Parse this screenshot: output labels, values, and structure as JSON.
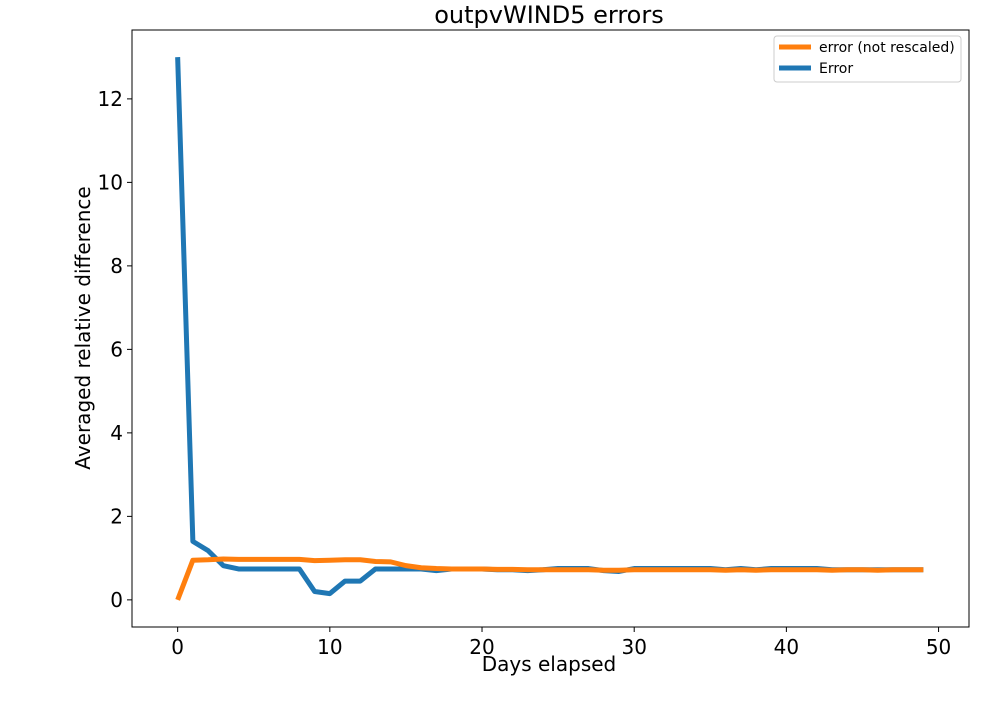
{
  "chart_data": {
    "type": "line",
    "title": "outpvWIND5 errors",
    "xlabel": "Days elapsed",
    "ylabel": "Averaged relative difference",
    "xlim": [
      -3,
      52
    ],
    "ylim": [
      -0.65,
      13.65
    ],
    "x_ticks": [
      0,
      10,
      20,
      30,
      40,
      50
    ],
    "y_ticks": [
      0,
      2,
      4,
      6,
      8,
      10,
      12
    ],
    "grid": false,
    "legend_position": "top-right",
    "x": [
      0,
      1,
      2,
      3,
      4,
      5,
      6,
      7,
      8,
      9,
      10,
      11,
      12,
      13,
      14,
      15,
      16,
      17,
      18,
      19,
      20,
      21,
      22,
      23,
      24,
      25,
      26,
      27,
      28,
      29,
      30,
      31,
      32,
      33,
      34,
      35,
      36,
      37,
      38,
      39,
      40,
      41,
      42,
      43,
      44,
      45,
      46,
      47,
      48,
      49
    ],
    "series": [
      {
        "name": "error (not rescaled)",
        "color": "#ff7f0e",
        "values": [
          0.0,
          0.95,
          0.96,
          0.98,
          0.97,
          0.97,
          0.97,
          0.97,
          0.97,
          0.94,
          0.95,
          0.96,
          0.96,
          0.92,
          0.91,
          0.82,
          0.77,
          0.75,
          0.74,
          0.74,
          0.74,
          0.73,
          0.73,
          0.72,
          0.72,
          0.72,
          0.72,
          0.72,
          0.71,
          0.71,
          0.72,
          0.72,
          0.72,
          0.72,
          0.72,
          0.72,
          0.71,
          0.72,
          0.71,
          0.72,
          0.72,
          0.72,
          0.72,
          0.71,
          0.72,
          0.72,
          0.71,
          0.72,
          0.72,
          0.72
        ]
      },
      {
        "name": "Error",
        "color": "#1f77b4",
        "values": [
          13.0,
          1.4,
          1.18,
          0.82,
          0.74,
          0.74,
          0.74,
          0.74,
          0.74,
          0.2,
          0.15,
          0.45,
          0.45,
          0.74,
          0.74,
          0.74,
          0.74,
          0.7,
          0.74,
          0.74,
          0.74,
          0.72,
          0.72,
          0.7,
          0.72,
          0.75,
          0.75,
          0.75,
          0.7,
          0.68,
          0.75,
          0.75,
          0.75,
          0.75,
          0.75,
          0.75,
          0.72,
          0.75,
          0.72,
          0.75,
          0.75,
          0.75,
          0.75,
          0.72,
          0.72,
          0.72,
          0.72,
          0.72,
          0.72,
          0.72
        ]
      }
    ]
  }
}
